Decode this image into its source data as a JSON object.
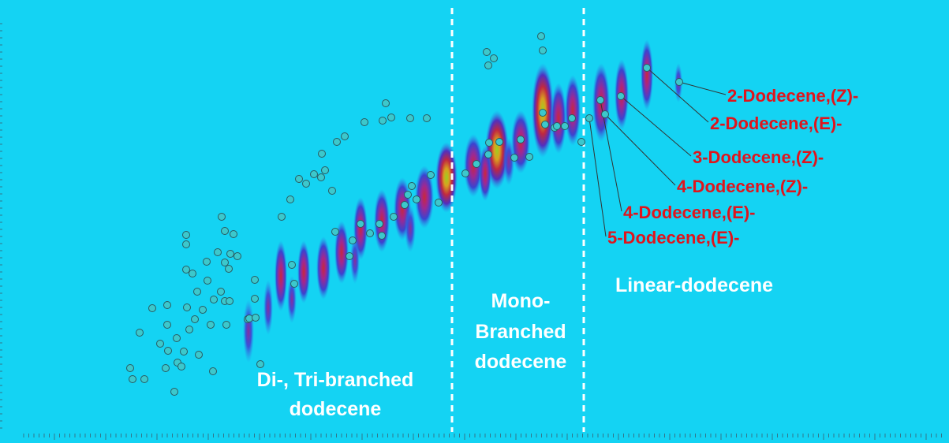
{
  "regions": [
    {
      "lines": [
        "Di-, Tri-branched",
        "dodecene"
      ]
    },
    {
      "lines": [
        "Mono-",
        "Branched",
        "dodecene"
      ]
    },
    {
      "lines": [
        "Linear-dodecene"
      ]
    }
  ],
  "compounds": [
    "2-Dodecene,(Z)-",
    "2-Dodecene,(E)-",
    "3-Dodecene,(Z)-",
    "4-Dodecene,(Z)-",
    "4-Dodecene,(E)-",
    "5-Dodecene,(E)-"
  ]
}
